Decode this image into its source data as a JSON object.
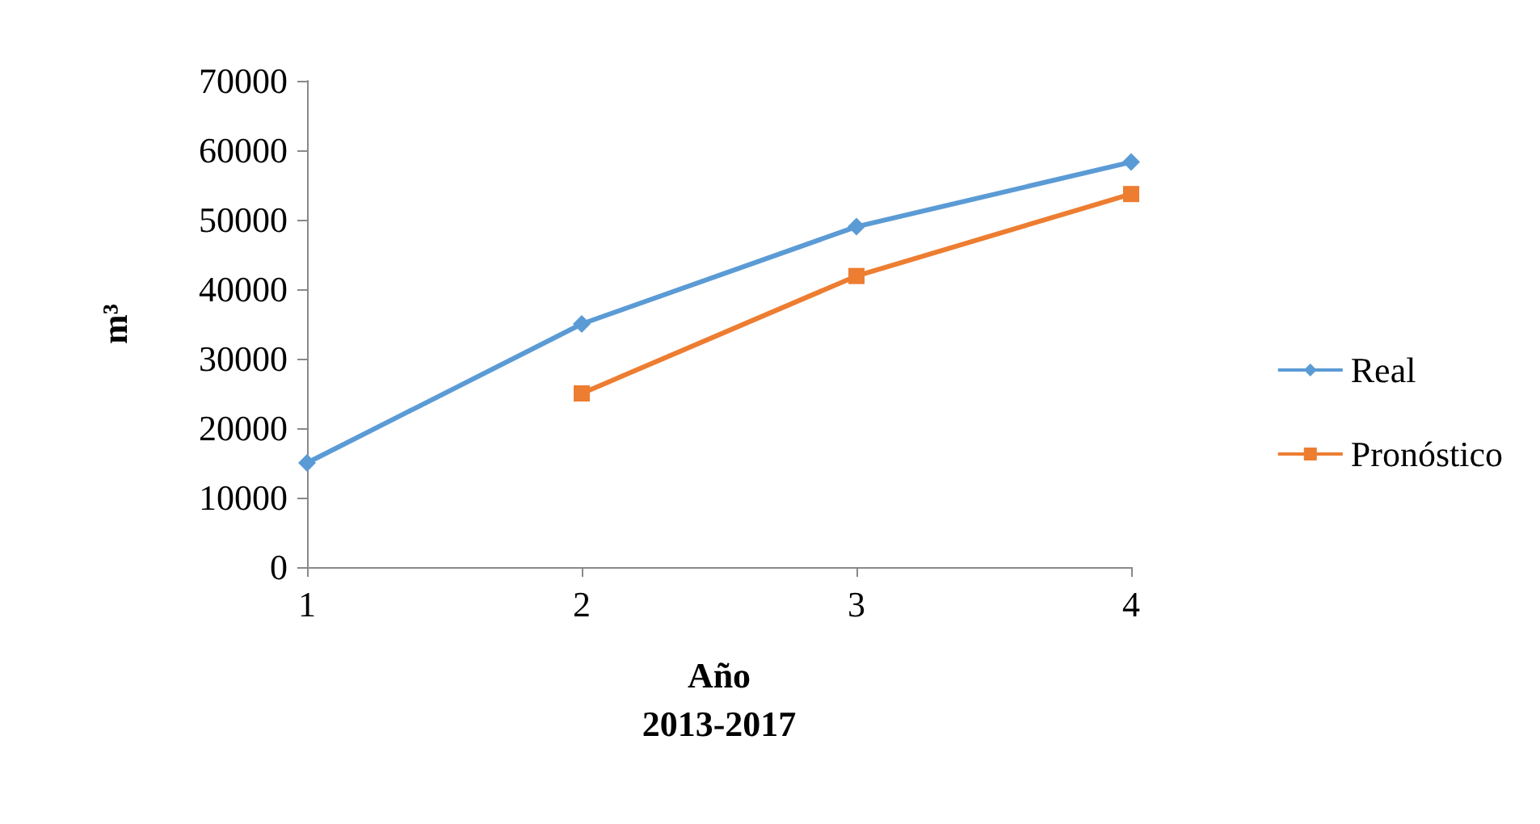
{
  "chart_data": {
    "type": "line",
    "xlabel": "Año\n2013-2017",
    "ylabel": "m³",
    "categories": [
      "1",
      "2",
      "3",
      "4"
    ],
    "series": [
      {
        "name": "Real",
        "color": "#5b9bd5",
        "marker": "diamond",
        "values": [
          15000,
          35000,
          49000,
          58300
        ]
      },
      {
        "name": "Pronóstico",
        "color": "#ed7d31",
        "marker": "square",
        "values": [
          null,
          25000,
          41900,
          53700
        ]
      }
    ],
    "ylim": [
      0,
      70000
    ],
    "yticks": [
      0,
      10000,
      20000,
      30000,
      40000,
      50000,
      60000,
      70000
    ],
    "grid": false,
    "legend": "right"
  }
}
